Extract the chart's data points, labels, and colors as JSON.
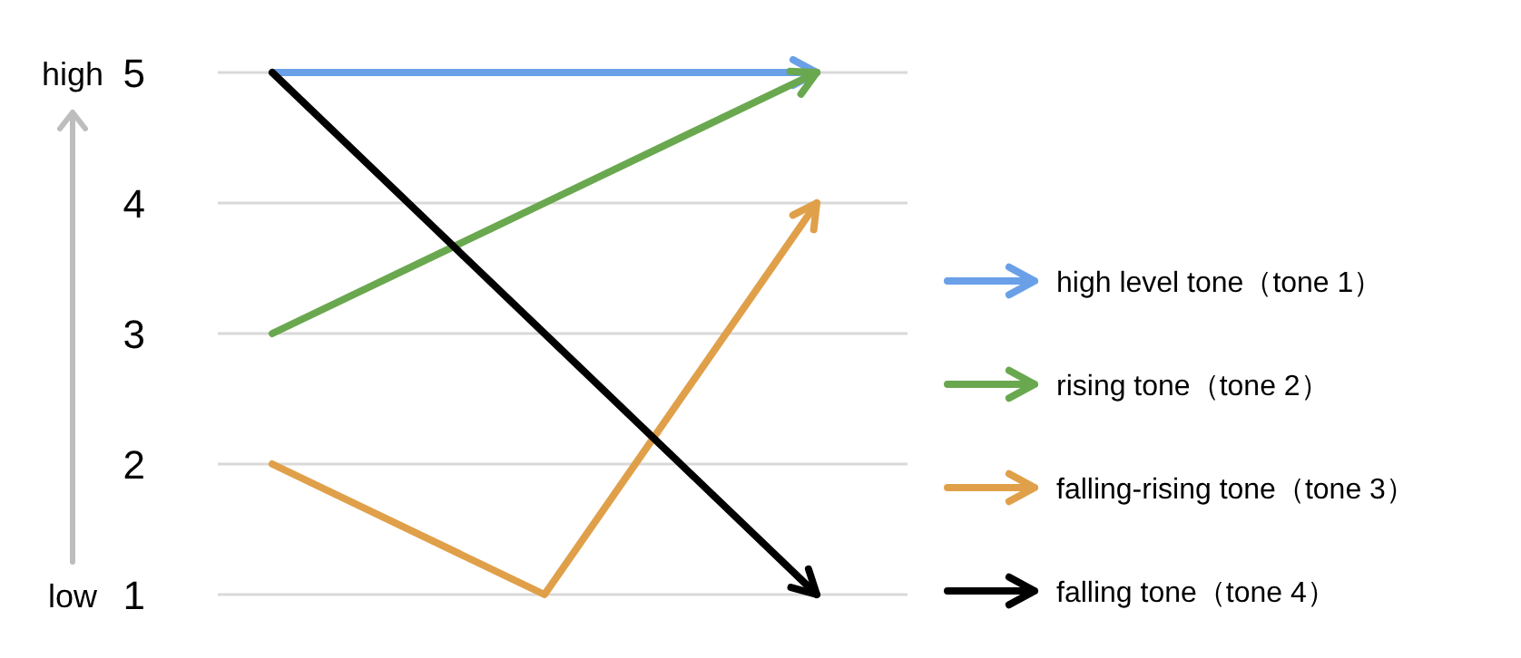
{
  "chart_data": {
    "type": "line",
    "categories": [
      null,
      null,
      null
    ],
    "series": [
      {
        "name": "high level tone（tone 1）",
        "color": "#6aa0e8",
        "values": [
          5,
          5,
          5
        ]
      },
      {
        "name": "rising tone（tone 2）",
        "color": "#6aa84f",
        "values": [
          3,
          4,
          5
        ]
      },
      {
        "name": "falling-rising tone（tone 3）",
        "color": "#e0a04a",
        "values": [
          2,
          1,
          4
        ]
      },
      {
        "name": "falling tone（tone 4）",
        "color": "#000000",
        "values": [
          5,
          3,
          1
        ]
      }
    ],
    "ylim": [
      1,
      5
    ],
    "yticks": [
      1,
      2,
      3,
      4,
      5
    ],
    "grid": "y",
    "legend": "right",
    "annotations": [
      "high",
      "low"
    ]
  }
}
